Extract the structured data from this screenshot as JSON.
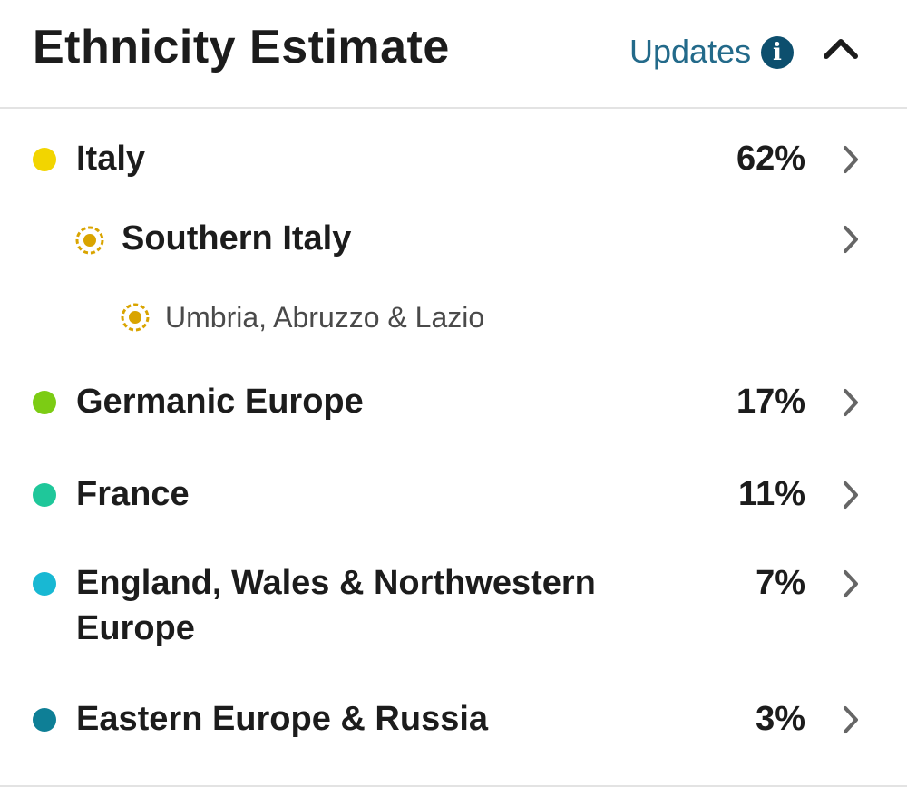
{
  "header": {
    "title": "Ethnicity Estimate",
    "updates_label": "Updates",
    "info_glyph": "i"
  },
  "regions": [
    {
      "label": "Italy",
      "percent": "62%",
      "color": "#f2d500"
    },
    {
      "label": "Germanic Europe",
      "percent": "17%",
      "color": "#7ccc14"
    },
    {
      "label": "France",
      "percent": "11%",
      "color": "#1fc79a"
    },
    {
      "label": "England, Wales & Northwestern Europe",
      "percent": "7%",
      "color": "#18b8d3"
    },
    {
      "label": "Eastern Europe & Russia",
      "percent": "3%",
      "color": "#0e7f96"
    }
  ],
  "subregions": [
    {
      "label": "Southern Italy",
      "color": "#d9a400"
    },
    {
      "label": "Umbria, Abruzzo & Lazio",
      "color": "#d9a400"
    }
  ],
  "icons": {
    "info": "info-icon",
    "collapse": "chevron-up-icon",
    "row": "chevron-right-icon",
    "dot": "color-dot-icon",
    "community": "community-ring-icon"
  }
}
